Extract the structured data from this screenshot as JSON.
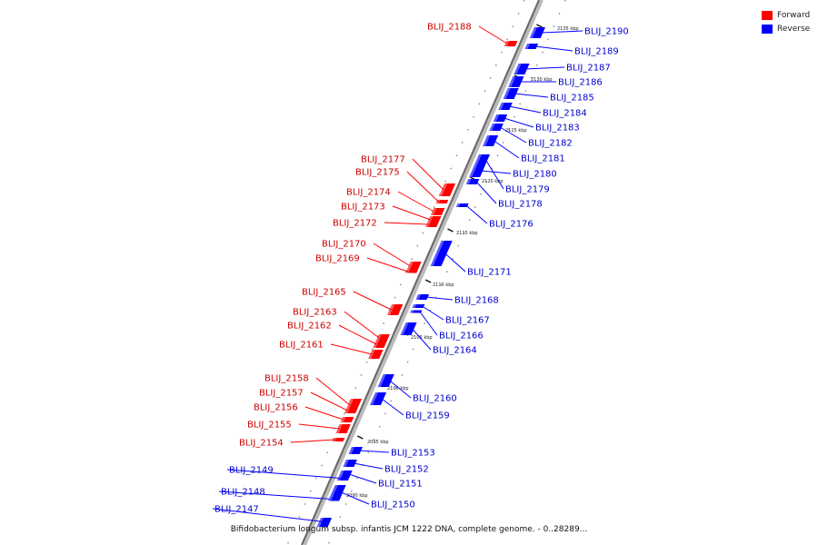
{
  "caption": "Bifidobacterium longum subsp. infantis JCM 1222 DNA, complete genome. - 0..28289...",
  "legend": [
    {
      "label": "Forward",
      "color": "#ff0000"
    },
    {
      "label": "Reverse",
      "color": "#0000ff"
    }
  ],
  "colors": {
    "forward": "#ff0000",
    "reverse": "#0000ff",
    "backbone": "#888888",
    "label_forward": "#cc0000",
    "label_reverse": "#0000cc"
  },
  "scale_ticks": [
    "2135 kbp",
    "2130 kbp",
    "2125 kbp",
    "2120 kbp",
    "2115 kbp",
    "2110 kbp",
    "2105 kbp",
    "2100 kbp",
    "2095 kbp",
    "2090 kbp"
  ],
  "genes": [
    {
      "id": "BLIJ_2188",
      "strand": "forward"
    },
    {
      "id": "BLIJ_2190",
      "strand": "reverse"
    },
    {
      "id": "BLIJ_2189",
      "strand": "reverse"
    },
    {
      "id": "BLIJ_2187",
      "strand": "reverse"
    },
    {
      "id": "BLIJ_2186",
      "strand": "reverse"
    },
    {
      "id": "BLIJ_2185",
      "strand": "reverse"
    },
    {
      "id": "BLIJ_2184",
      "strand": "reverse"
    },
    {
      "id": "BLIJ_2183",
      "strand": "reverse"
    },
    {
      "id": "BLIJ_2182",
      "strand": "reverse"
    },
    {
      "id": "BLIJ_2181",
      "strand": "reverse"
    },
    {
      "id": "BLIJ_2180",
      "strand": "reverse"
    },
    {
      "id": "BLIJ_2179",
      "strand": "reverse"
    },
    {
      "id": "BLIJ_2178",
      "strand": "reverse"
    },
    {
      "id": "BLIJ_2176",
      "strand": "reverse"
    },
    {
      "id": "BLIJ_2177",
      "strand": "forward"
    },
    {
      "id": "BLIJ_2175",
      "strand": "forward"
    },
    {
      "id": "BLIJ_2174",
      "strand": "forward"
    },
    {
      "id": "BLIJ_2173",
      "strand": "forward"
    },
    {
      "id": "BLIJ_2172",
      "strand": "forward"
    },
    {
      "id": "BLIJ_2171",
      "strand": "reverse"
    },
    {
      "id": "BLIJ_2170",
      "strand": "forward"
    },
    {
      "id": "BLIJ_2169",
      "strand": "forward"
    },
    {
      "id": "BLIJ_2168",
      "strand": "reverse"
    },
    {
      "id": "BLIJ_2165",
      "strand": "forward"
    },
    {
      "id": "BLIJ_2167",
      "strand": "reverse"
    },
    {
      "id": "BLIJ_2163",
      "strand": "forward"
    },
    {
      "id": "BLIJ_2166",
      "strand": "reverse"
    },
    {
      "id": "BLIJ_2162",
      "strand": "forward"
    },
    {
      "id": "BLIJ_2164",
      "strand": "reverse"
    },
    {
      "id": "BLIJ_2161",
      "strand": "forward"
    },
    {
      "id": "BLIJ_2158",
      "strand": "forward"
    },
    {
      "id": "BLIJ_2157",
      "strand": "forward"
    },
    {
      "id": "BLIJ_2160",
      "strand": "reverse"
    },
    {
      "id": "BLIJ_2156",
      "strand": "forward"
    },
    {
      "id": "BLIJ_2159",
      "strand": "reverse"
    },
    {
      "id": "BLIJ_2155",
      "strand": "forward"
    },
    {
      "id": "BLIJ_2154",
      "strand": "forward"
    },
    {
      "id": "BLIJ_2153",
      "strand": "reverse"
    },
    {
      "id": "BLIJ_2152",
      "strand": "reverse"
    },
    {
      "id": "BLIJ_2149",
      "strand": "reverse"
    },
    {
      "id": "BLIJ_2151",
      "strand": "reverse"
    },
    {
      "id": "BLIJ_2148",
      "strand": "reverse"
    },
    {
      "id": "BLIJ_2150",
      "strand": "reverse"
    },
    {
      "id": "BLIJ_2147",
      "strand": "reverse"
    }
  ]
}
